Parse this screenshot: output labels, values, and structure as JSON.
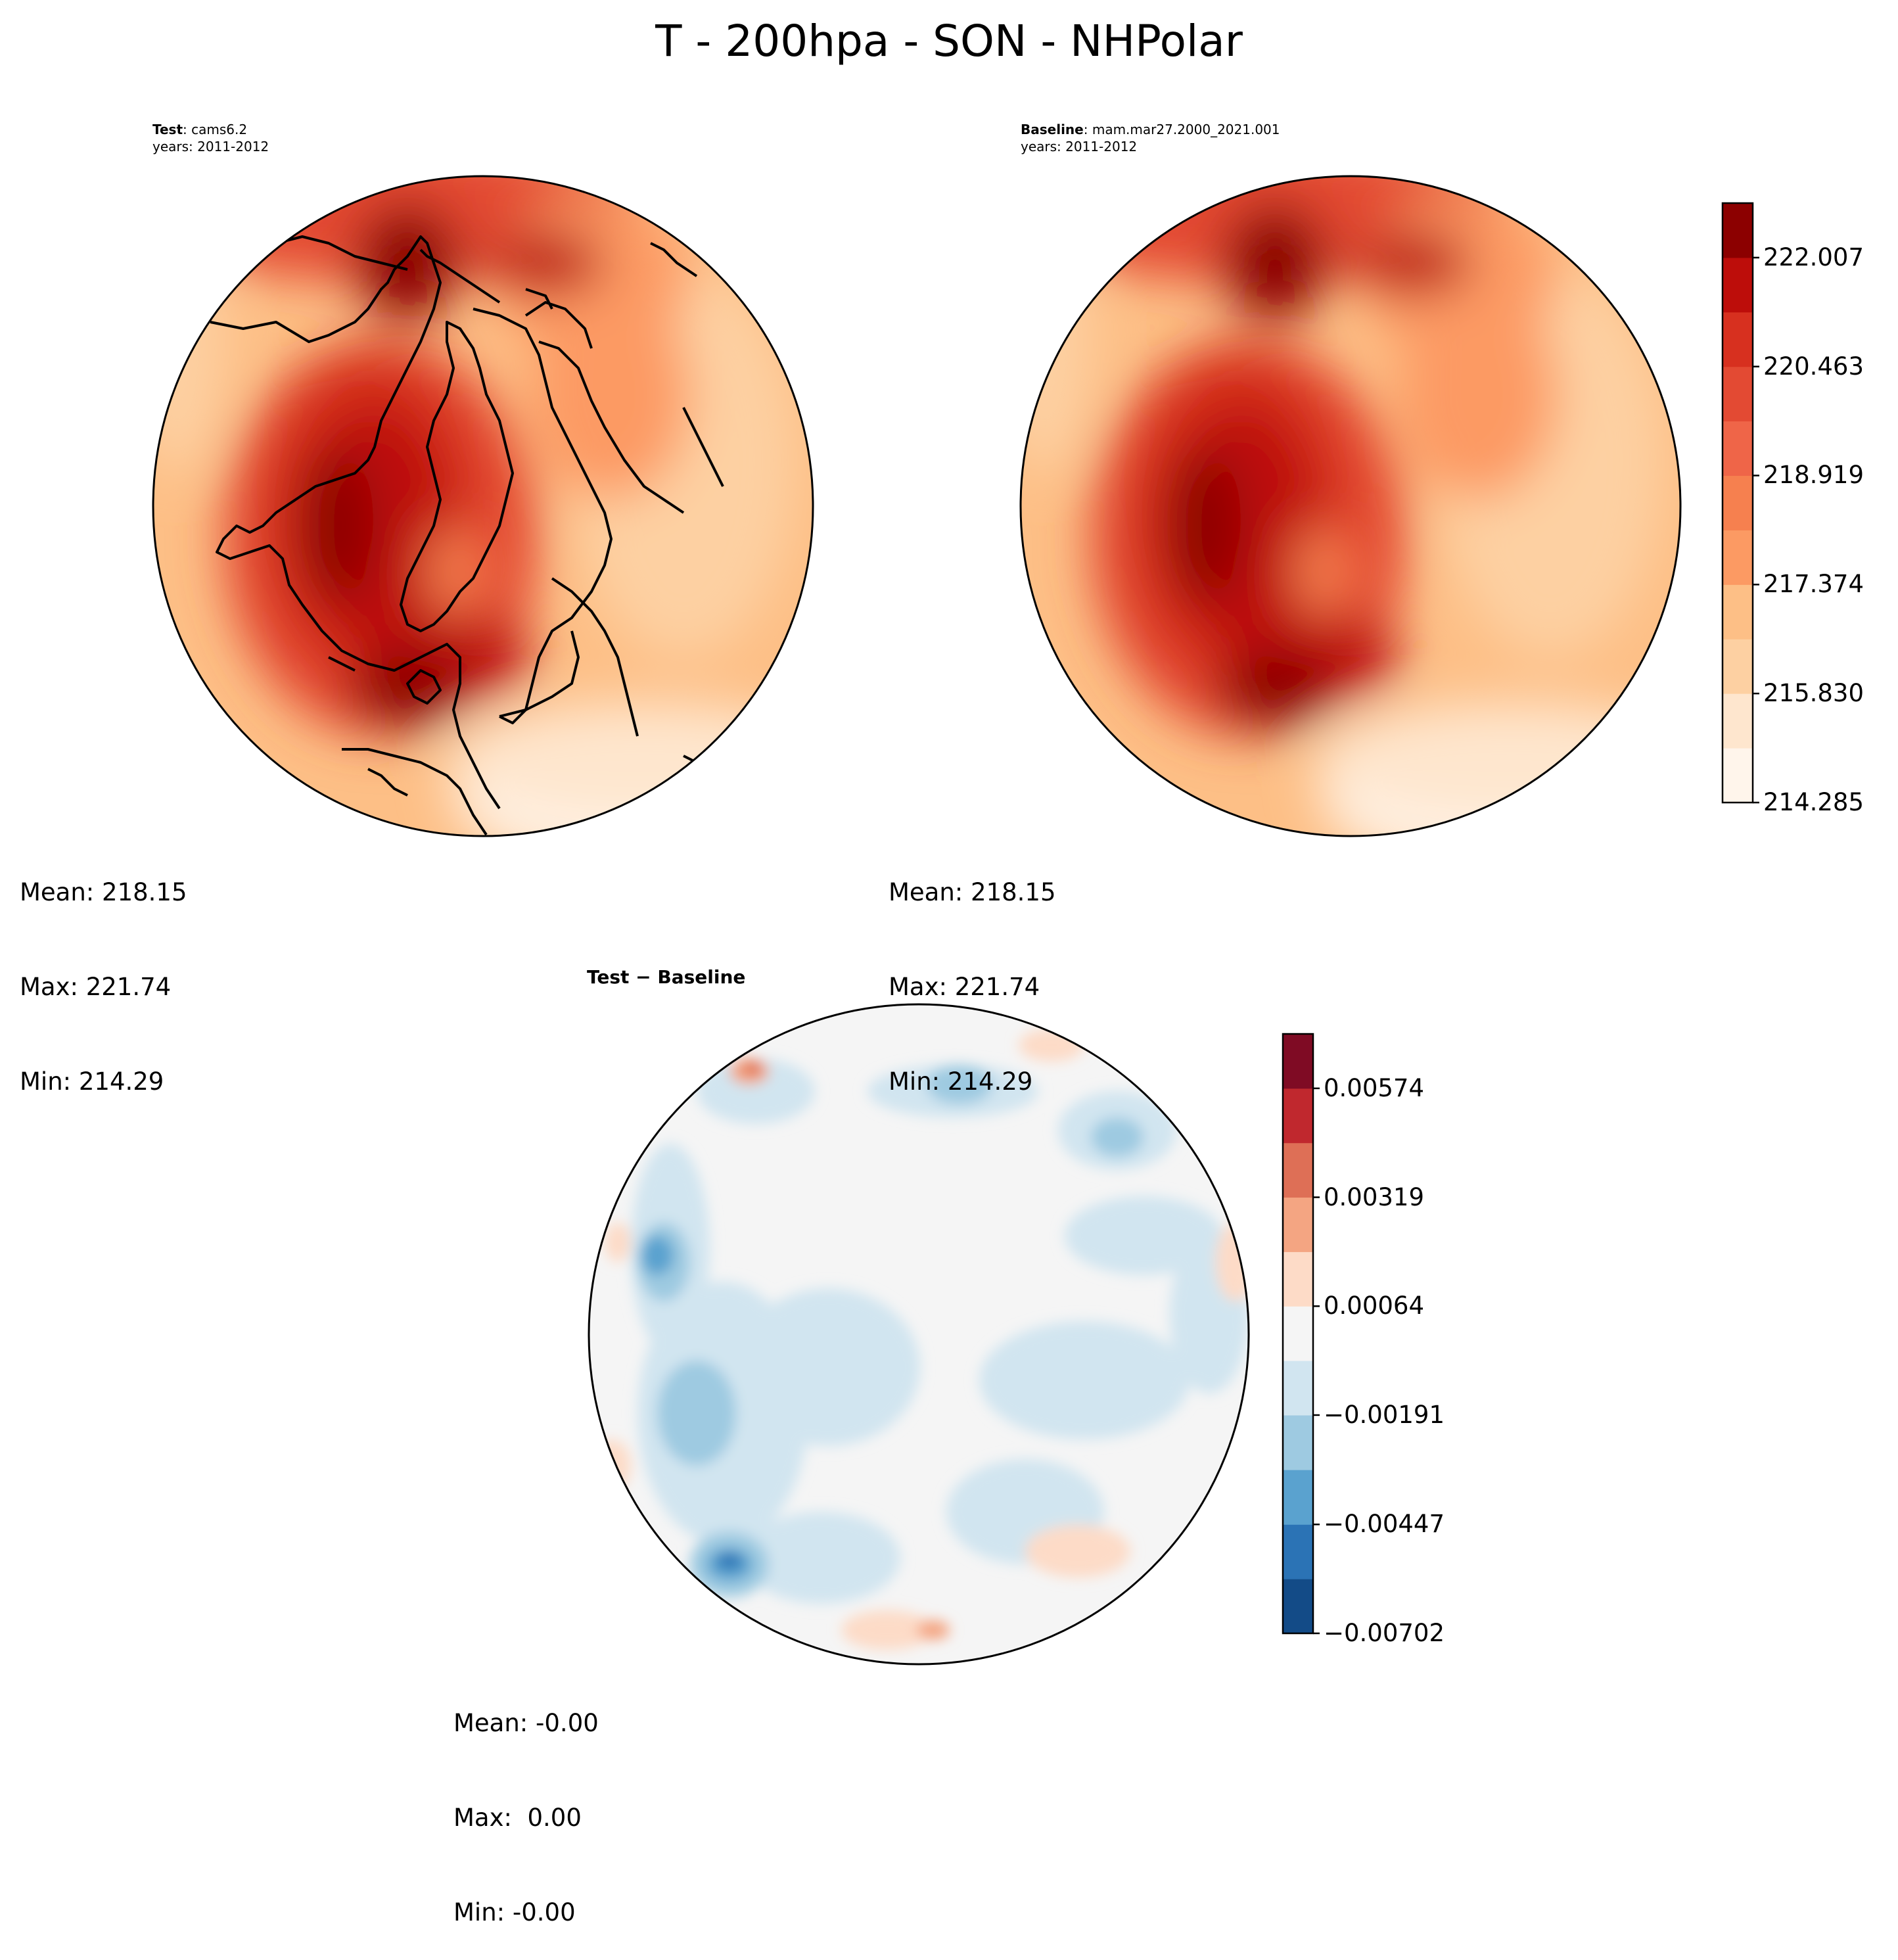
{
  "figure": {
    "title": "T - 200hpa - SON - NHPolar"
  },
  "panels": {
    "test": {
      "label_bold": "Test",
      "label_rest": ": cams6.2",
      "years": "years: 2011-2012",
      "stats": {
        "mean": "Mean: 218.15",
        "max": "Max: 221.74",
        "min": "Min: 214.29"
      }
    },
    "baseline": {
      "label_bold": "Baseline",
      "label_rest": ": mam.mar27.2000_2021.001",
      "years": "years: 2011-2012",
      "stats": {
        "mean": "Mean: 218.15",
        "max": "Max: 221.74",
        "min": "Min: 214.29"
      }
    },
    "diff": {
      "label": "Test − Baseline",
      "stats": {
        "mean": "Mean: -0.00",
        "max": "Max:  0.00",
        "min": "Min: -0.00"
      }
    }
  },
  "chart_data": [
    {
      "type": "heatmap",
      "projection": "north-polar-stereographic",
      "title": "Test: cams6.2",
      "variable": "T at 200 hPa, SON",
      "colorbar": {
        "levels": [
          214.285,
          215.0572,
          215.83,
          216.6022,
          217.374,
          218.1465,
          218.919,
          219.6912,
          220.463,
          221.2353,
          222.007,
          222.7795
        ],
        "tick_labels": [
          "214.285",
          "215.830",
          "217.374",
          "218.919",
          "220.463",
          "222.007"
        ],
        "colors": [
          "#fff5eb",
          "#fee6ce",
          "#fdd0a2",
          "#fdbf86",
          "#fc9a63",
          "#f6804f",
          "#ef6548",
          "#e34a33",
          "#d7301f",
          "#bd0d0a",
          "#8c0000"
        ]
      },
      "stats": {
        "mean": 218.15,
        "max": 221.74,
        "min": 214.29
      }
    },
    {
      "type": "heatmap",
      "projection": "north-polar-stereographic",
      "title": "Baseline: mam.mar27.2000_2021.001",
      "variable": "T at 200 hPa, SON",
      "colorbar": "shared with Test panel",
      "stats": {
        "mean": 218.15,
        "max": 221.74,
        "min": 214.29
      }
    },
    {
      "type": "heatmap",
      "projection": "north-polar-stereographic",
      "title": "Test − Baseline",
      "colorbar": {
        "levels": [
          -0.00702,
          -0.005745,
          -0.00447,
          -0.00319,
          -0.00191,
          -0.000635,
          0.00064,
          0.001915,
          0.00319,
          0.004465,
          0.00574,
          0.007015
        ],
        "tick_labels": [
          "−0.00702",
          "−0.00447",
          "−0.00191",
          "0.00064",
          "0.00319",
          "0.00574"
        ],
        "colors": [
          "#134b87",
          "#2b73b5",
          "#5aa2cf",
          "#9ecae1",
          "#d1e5f0",
          "#f5f5f5",
          "#fddbc7",
          "#f4a582",
          "#de6f56",
          "#c0282e",
          "#7f0b24"
        ]
      },
      "stats": {
        "mean": -0.0,
        "max": 0.0,
        "min": -0.0
      }
    }
  ]
}
